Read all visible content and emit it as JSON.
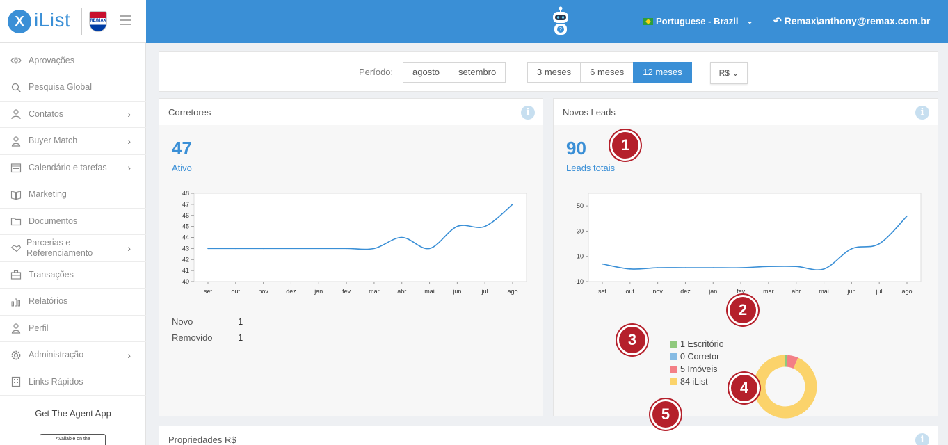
{
  "header": {
    "brand": "iList",
    "logo_glyph": "X",
    "remax_logo_text": "RE/MAX",
    "language": "Portuguese - Brazil",
    "user": "Remax\\anthony@remax.com.br"
  },
  "sidebar": {
    "items": [
      {
        "label": "Aprovações",
        "icon": "eye-icon",
        "chevron": false
      },
      {
        "label": "Pesquisa Global",
        "icon": "search-icon",
        "chevron": false
      },
      {
        "label": "Contatos",
        "icon": "contacts-icon",
        "chevron": true
      },
      {
        "label": "Buyer Match",
        "icon": "user-icon",
        "chevron": true
      },
      {
        "label": "Calendário e tarefas",
        "icon": "calendar-icon",
        "chevron": true
      },
      {
        "label": "Marketing",
        "icon": "book-icon",
        "chevron": false
      },
      {
        "label": "Documentos",
        "icon": "folder-icon",
        "chevron": false
      },
      {
        "label": "Parcerias e Referenciamento",
        "icon": "handshake-icon",
        "chevron": true
      },
      {
        "label": "Transações",
        "icon": "briefcase-icon",
        "chevron": false
      },
      {
        "label": "Relatórios",
        "icon": "bar-chart-icon",
        "chevron": false
      },
      {
        "label": "Perfil",
        "icon": "user-icon",
        "chevron": false
      },
      {
        "label": "Administração",
        "icon": "gear-icon",
        "chevron": true
      },
      {
        "label": "Links Rápidos",
        "icon": "building-icon",
        "chevron": false
      }
    ],
    "get_app": "Get The Agent App",
    "store_badge": "Available on the"
  },
  "filters": {
    "periodo_label": "Período:",
    "months": [
      "agosto",
      "setembro"
    ],
    "ranges": [
      "3 meses",
      "6 meses",
      "12 meses"
    ],
    "active_range": "12 meses",
    "currency": "R$"
  },
  "cards": {
    "corretores": {
      "title": "Corretores",
      "value": "47",
      "sublabel": "Ativo",
      "stats": [
        {
          "label": "Novo",
          "value": "1"
        },
        {
          "label": "Removido",
          "value": "1"
        }
      ]
    },
    "novos_leads": {
      "title": "Novos Leads",
      "value": "90",
      "sublabel": "Leads totais"
    },
    "propriedades": {
      "title": "Propriedades",
      "currency": "R$"
    }
  },
  "chart_data": [
    {
      "type": "line",
      "categories": [
        "set",
        "out",
        "nov",
        "dez",
        "jan",
        "fev",
        "mar",
        "abr",
        "mai",
        "jun",
        "jul",
        "ago"
      ],
      "series": [
        {
          "values": [
            43,
            43,
            43,
            43,
            43,
            43,
            43,
            44,
            43,
            45,
            45,
            47
          ]
        }
      ],
      "y_ticks": [
        40,
        41,
        42,
        43,
        44,
        45,
        46,
        47,
        48
      ],
      "ylim": [
        40,
        48
      ],
      "color": "#3a8fd6"
    },
    {
      "type": "line",
      "categories": [
        "set",
        "out",
        "nov",
        "dez",
        "jan",
        "fev",
        "mar",
        "abr",
        "mai",
        "jun",
        "jul",
        "ago"
      ],
      "series": [
        {
          "values": [
            4,
            0,
            1,
            1,
            1,
            1,
            2,
            2,
            0,
            16,
            20,
            42
          ]
        }
      ],
      "y_ticks": [
        -10,
        10,
        30,
        50
      ],
      "ylim": [
        -10,
        60
      ],
      "color": "#3a8fd6"
    },
    {
      "type": "pie",
      "labels": [
        "Escritório",
        "Corretor",
        "Imóveis",
        "iList"
      ],
      "values": [
        1,
        0,
        5,
        84
      ],
      "legend": [
        "1 Escritório",
        "0 Corretor",
        "5 Imóveis",
        "84 iList"
      ],
      "colors": [
        "#8fc97d",
        "#86bbe3",
        "#f37f86",
        "#fbd36b"
      ],
      "legend_position": "left"
    }
  ],
  "callouts": [
    "1",
    "2",
    "3",
    "4",
    "5"
  ]
}
